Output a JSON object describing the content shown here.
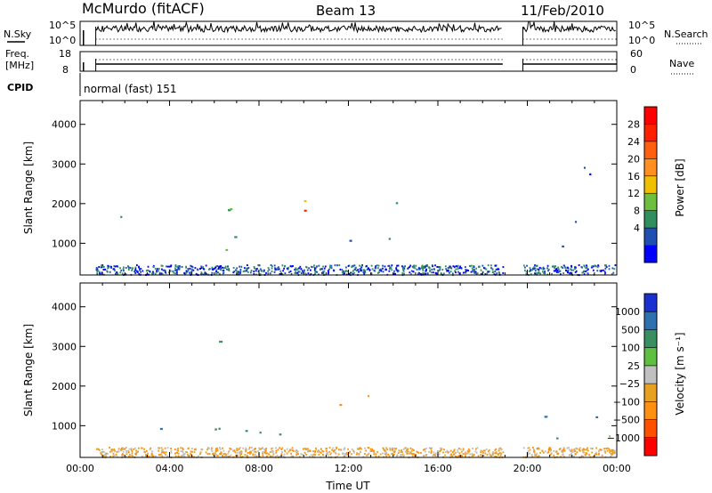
{
  "header": {
    "title": "McMurdo (fitACF)",
    "beam": "Beam 13",
    "date": "11/Feb/2010"
  },
  "top_panels": {
    "nsky_label": "N.Sky",
    "nsearch_label": "N.Search",
    "noise_ticks_left": [
      "10^5",
      "10^0"
    ],
    "noise_ticks_right": [
      "10^5",
      "10^0"
    ],
    "freq_label_1": "Freq.",
    "freq_label_2": "[MHz]",
    "freq_ticks": [
      "18",
      "8"
    ],
    "nave_label": "Nave",
    "nave_ticks": [
      "60",
      "0"
    ],
    "cpid_label": "CPID",
    "cpid_text": "normal (fast) 151"
  },
  "colors": {
    "power_scale": [
      "#0000ff",
      "#1f4fb0",
      "#2f8f5f",
      "#6fbf3f",
      "#f0c000",
      "#ff9020",
      "#ff6010",
      "#ff2000",
      "#ff0000"
    ],
    "velocity_scale": [
      "#1a2fd0",
      "#2f70b0",
      "#3a8f60",
      "#5fbf40",
      "#c0c0c0",
      "#e8a020",
      "#ff9010",
      "#ff5000",
      "#ff0000"
    ]
  },
  "chart_data": [
    {
      "type": "heatmap",
      "ylabel": "Slant Range [km]",
      "xlabel": "",
      "x_tick_labels": [
        "00:00",
        "04:00",
        "08:00",
        "12:00",
        "16:00",
        "20:00",
        "00:00"
      ],
      "y_ticks": [
        1000,
        2000,
        3000,
        4000
      ],
      "ylim": [
        200,
        4600
      ],
      "xlim_hours": [
        0,
        24
      ],
      "colorbar_label": "Power [dB]",
      "colorbar_ticks": [
        "28",
        "24",
        "20",
        "16",
        "12",
        "8",
        "4"
      ],
      "data_gaps_hours": [
        [
          0,
          0.7
        ],
        [
          18.9,
          19.8
        ]
      ],
      "scatter_regions": [
        {
          "t0": 1.8,
          "t1": 4.4,
          "r0": 700,
          "r1": 1800,
          "level": "green-yellow"
        },
        {
          "t0": 4.2,
          "t1": 7.5,
          "r0": 800,
          "r1": 3200,
          "level": "green-yellow"
        },
        {
          "t0": 7.8,
          "t1": 10.2,
          "r0": 800,
          "r1": 2500,
          "level": "orange-red"
        },
        {
          "t0": 10.2,
          "t1": 14.5,
          "r0": 800,
          "r1": 2200,
          "level": "green"
        },
        {
          "t0": 20.0,
          "t1": 23.8,
          "r0": 400,
          "r1": 3200,
          "level": "blue-green"
        }
      ]
    },
    {
      "type": "heatmap",
      "ylabel": "Slant Range [km]",
      "xlabel": "Time UT",
      "x_tick_labels": [
        "00:00",
        "04:00",
        "08:00",
        "12:00",
        "16:00",
        "20:00",
        "00:00"
      ],
      "y_ticks": [
        1000,
        2000,
        3000,
        4000
      ],
      "ylim": [
        200,
        4600
      ],
      "xlim_hours": [
        0,
        24
      ],
      "colorbar_label": "Velocity [m s⁻¹]",
      "colorbar_ticks": [
        "1000",
        "500",
        "100",
        "25",
        "−25",
        "−100",
        "−500",
        "−1000"
      ],
      "data_gaps_hours": [
        [
          0,
          0.7
        ],
        [
          18.9,
          19.8
        ]
      ],
      "scatter_regions": [
        {
          "t0": 1.8,
          "t1": 4.4,
          "r0": 700,
          "r1": 1800,
          "level": "green"
        },
        {
          "t0": 4.2,
          "t1": 7.5,
          "r0": 800,
          "r1": 3200,
          "level": "blue-green"
        },
        {
          "t0": 7.8,
          "t1": 10.2,
          "r0": 800,
          "r1": 2500,
          "level": "blue-green"
        },
        {
          "t0": 11.0,
          "t1": 14.5,
          "r0": 800,
          "r1": 2000,
          "level": "orange"
        },
        {
          "t0": 20.0,
          "t1": 23.8,
          "r0": 400,
          "r1": 3200,
          "level": "green"
        }
      ]
    }
  ]
}
